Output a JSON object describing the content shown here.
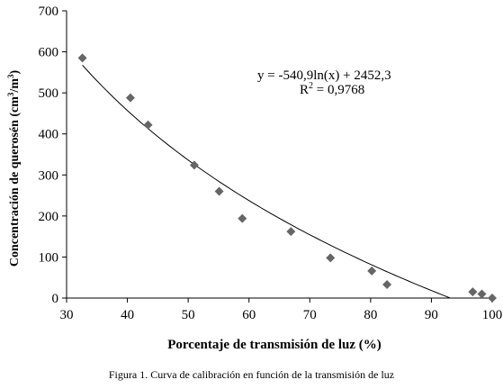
{
  "chart_data": {
    "type": "scatter",
    "xlabel": "Porcentaje de transmisión de luz (%)",
    "ylabel_main": "Concentración de querosén (cm",
    "ylabel_sup1": "3",
    "ylabel_mid": "/m",
    "ylabel_sup2": "3",
    "ylabel_end": ")",
    "xlim": [
      30,
      100
    ],
    "ylim": [
      0,
      700
    ],
    "xticks": [
      30,
      40,
      50,
      60,
      70,
      80,
      90,
      100
    ],
    "yticks": [
      0,
      100,
      200,
      300,
      400,
      500,
      600,
      700
    ],
    "marker_color": "#666666",
    "points": [
      {
        "x": 32.6,
        "y": 585
      },
      {
        "x": 40.5,
        "y": 488
      },
      {
        "x": 43.4,
        "y": 422
      },
      {
        "x": 51.0,
        "y": 324
      },
      {
        "x": 55.1,
        "y": 260
      },
      {
        "x": 58.9,
        "y": 194
      },
      {
        "x": 66.9,
        "y": 162
      },
      {
        "x": 73.4,
        "y": 98
      },
      {
        "x": 80.2,
        "y": 66
      },
      {
        "x": 82.7,
        "y": 33
      },
      {
        "x": 96.8,
        "y": 15
      },
      {
        "x": 98.3,
        "y": 10
      },
      {
        "x": 100.0,
        "y": 0
      }
    ],
    "trendline": {
      "a": -540.9,
      "b": 2452.3,
      "x_from": 32.6,
      "x_to": 93.0
    },
    "equation": "y = -540,9ln(x) + 2452,3",
    "r2_prefix": "R",
    "r2_sup": "2",
    "r2_value": " = 0,9768"
  },
  "caption": "Figura 1. Curva de calibración en función de la transmisión de luz"
}
